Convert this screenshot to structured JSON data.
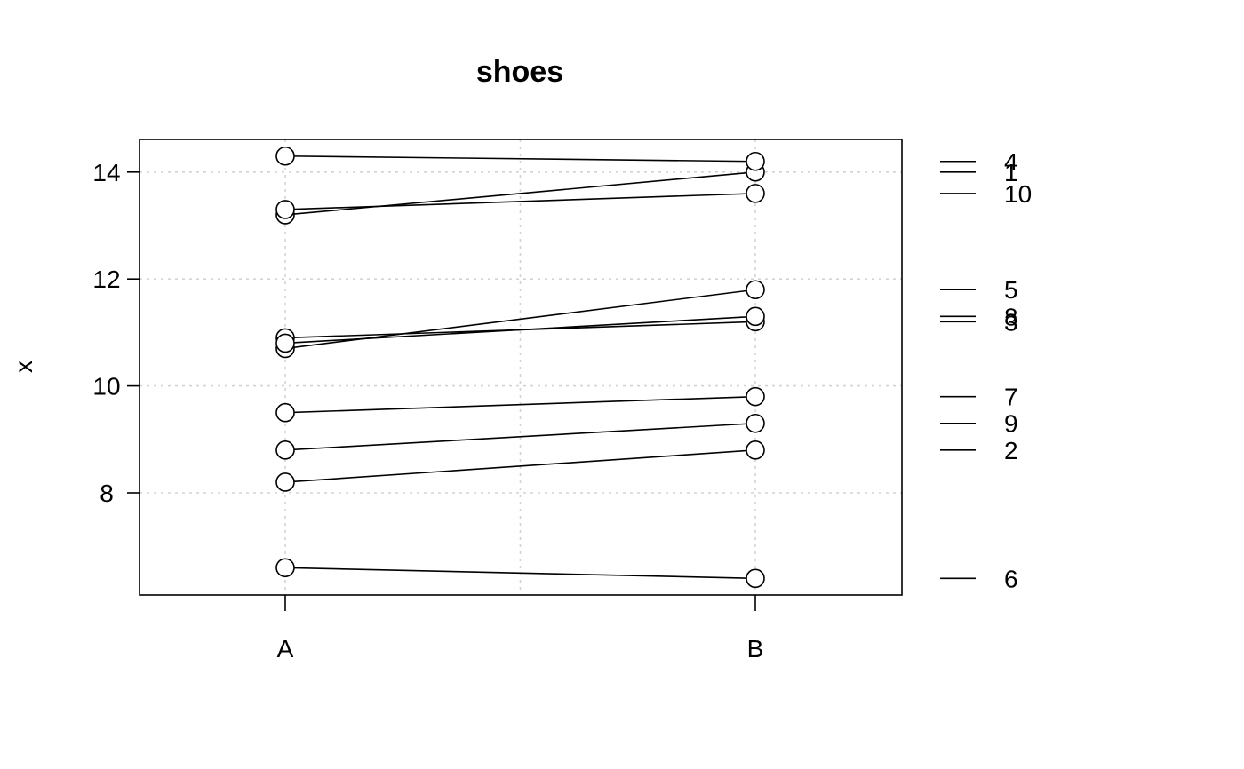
{
  "chart_data": {
    "type": "line",
    "title": "shoes",
    "xlabel": "",
    "ylabel": "x",
    "categories": [
      "A",
      "B"
    ],
    "ylim": [
      6.2,
      14.6
    ],
    "yticks": [
      8,
      10,
      12,
      14
    ],
    "grid": true,
    "series": [
      {
        "name": "1",
        "values": [
          13.2,
          14.0
        ]
      },
      {
        "name": "2",
        "values": [
          8.2,
          8.8
        ]
      },
      {
        "name": "3",
        "values": [
          10.9,
          11.2
        ]
      },
      {
        "name": "4",
        "values": [
          14.3,
          14.2
        ]
      },
      {
        "name": "5",
        "values": [
          10.7,
          11.8
        ]
      },
      {
        "name": "6",
        "values": [
          6.6,
          6.4
        ]
      },
      {
        "name": "7",
        "values": [
          9.5,
          9.8
        ]
      },
      {
        "name": "8",
        "values": [
          10.8,
          11.3
        ]
      },
      {
        "name": "9",
        "values": [
          8.8,
          9.3
        ]
      },
      {
        "name": "10",
        "values": [
          13.3,
          13.6
        ]
      }
    ]
  }
}
